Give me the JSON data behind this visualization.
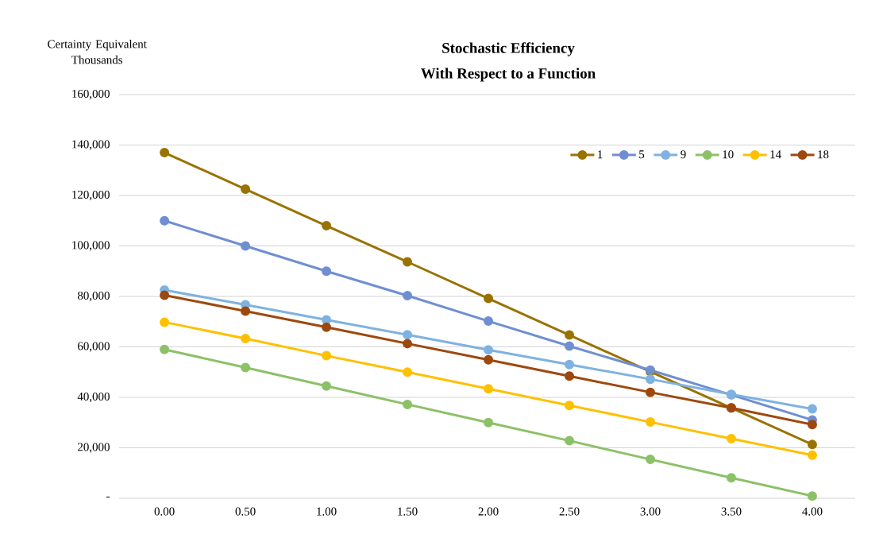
{
  "chart_data": {
    "type": "line",
    "title": "Stochastic Efficiency",
    "subtitle": "With Respect to a Function",
    "ylabel": "Certainty Equivalent Thousands",
    "categories": [
      "0.00",
      "0.50",
      "1.00",
      "1.50",
      "2.00",
      "2.50",
      "3.00",
      "3.50",
      "4.00"
    ],
    "series": [
      {
        "name": "1",
        "color": "#997300",
        "values": [
          137000,
          122500,
          108000,
          93700,
          79200,
          64700,
          50200,
          35800,
          21300
        ]
      },
      {
        "name": "5",
        "color": "#6f8fd1",
        "values": [
          110000,
          100000,
          90000,
          80300,
          70200,
          60300,
          50800,
          41000,
          31000
        ]
      },
      {
        "name": "9",
        "color": "#7fb2e0",
        "values": [
          82500,
          76700,
          70700,
          64800,
          58800,
          53000,
          47200,
          41200,
          35400
        ]
      },
      {
        "name": "10",
        "color": "#8cc168",
        "values": [
          59000,
          51800,
          44500,
          37200,
          30000,
          22800,
          15400,
          8100,
          900
        ]
      },
      {
        "name": "14",
        "color": "#ffc000",
        "values": [
          69800,
          63300,
          56500,
          50000,
          43400,
          36800,
          30200,
          23600,
          17100
        ]
      },
      {
        "name": "18",
        "color": "#9e480e",
        "values": [
          80500,
          74200,
          67800,
          61300,
          54900,
          48400,
          42000,
          35800,
          29200
        ]
      }
    ],
    "ylim": [
      0,
      160000
    ],
    "yticks": [
      {
        "value": 0,
        "label": "-"
      },
      {
        "value": 20000,
        "label": "20,000"
      },
      {
        "value": 40000,
        "label": "40,000"
      },
      {
        "value": 60000,
        "label": "60,000"
      },
      {
        "value": 80000,
        "label": "80,000"
      },
      {
        "value": 100000,
        "label": "100,000"
      },
      {
        "value": 120000,
        "label": "120,000"
      },
      {
        "value": 140000,
        "label": "140,000"
      },
      {
        "value": 160000,
        "label": "160,000"
      }
    ],
    "grid": "y",
    "legend": "top right",
    "marker": "circle",
    "line_style": "solid"
  }
}
